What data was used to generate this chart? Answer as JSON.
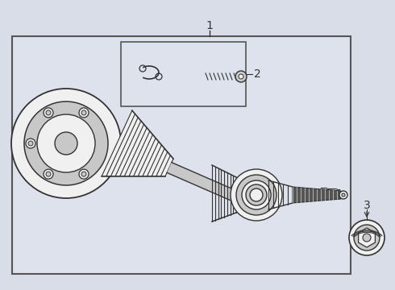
{
  "bg_color": "#d8dde8",
  "main_box_facecolor": "#dde2ec",
  "main_box_edgecolor": "#555555",
  "line_color": "#333333",
  "dark_fill": "#555555",
  "light_fill": "#c8c8c8",
  "white_fill": "#f0f0f0",
  "label_1": "1",
  "label_2": "2",
  "label_3": "3",
  "fig_bg": "#d8dde8"
}
